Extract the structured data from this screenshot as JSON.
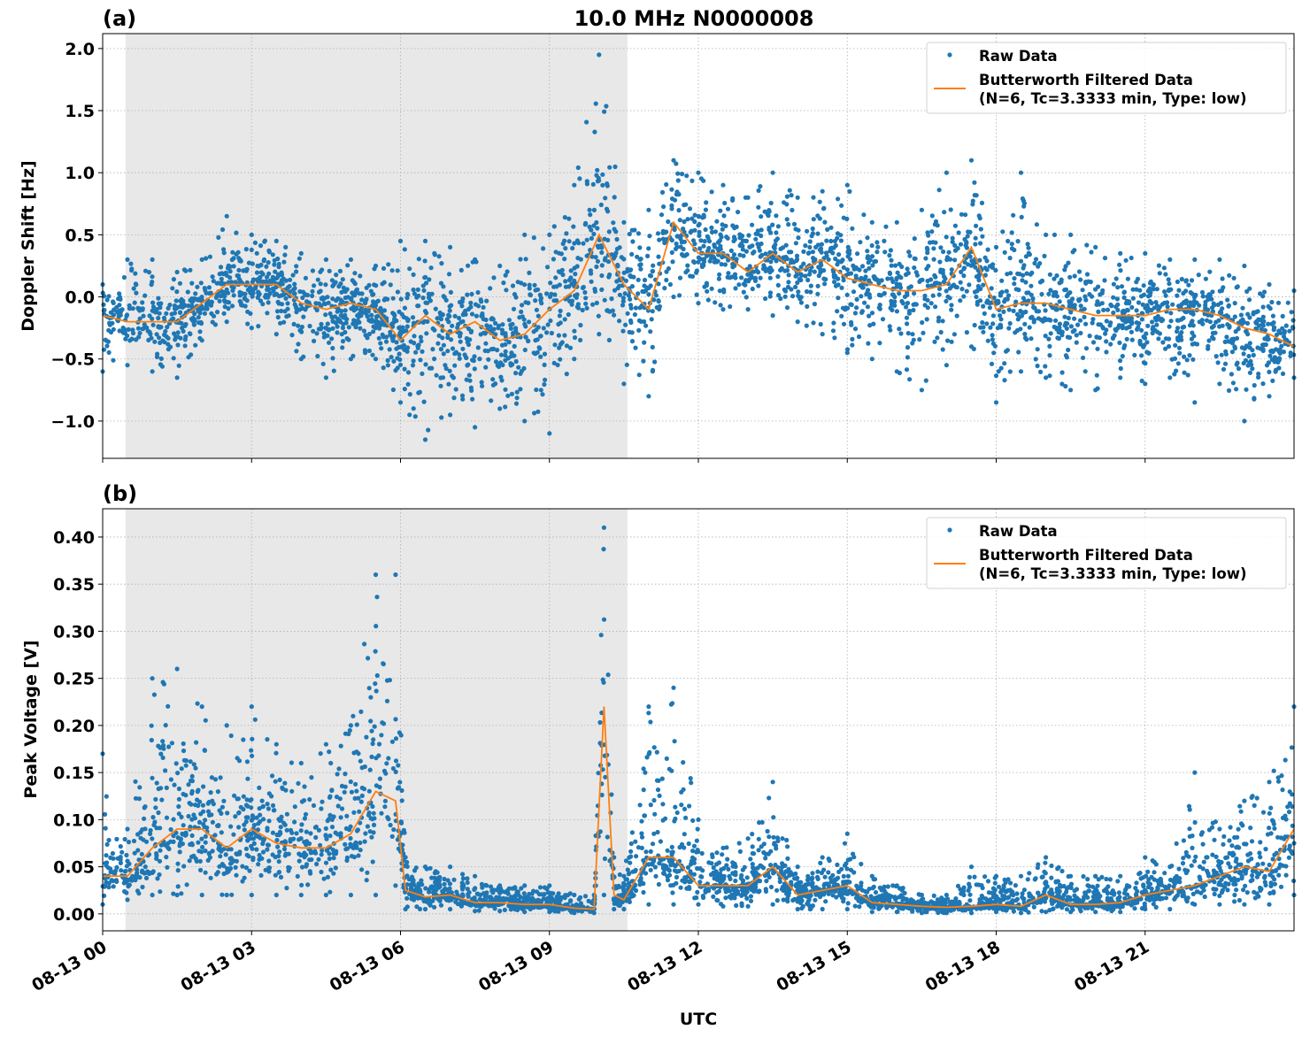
{
  "chart_data": [
    {
      "type": "scatter+line",
      "panel_label": "(a)",
      "title": "10.0 MHz N0000008",
      "xlabel": "",
      "ylabel": "Doppler Shift [Hz]",
      "ylim": [
        -1.3,
        2.12
      ],
      "yticks": [
        2.0,
        1.5,
        1.0,
        0.5,
        0.0,
        -0.5,
        -1.0
      ],
      "ytick_labels": [
        "2.0",
        "1.5",
        "1.0",
        "0.5",
        "0.0",
        "−0.5",
        "−1.0"
      ],
      "grid": true,
      "legend_position": "top-right",
      "legend": [
        "Raw Data",
        "Butterworth Filtered Data",
        "(N=6, Tc=3.3333 min, Type: low)"
      ],
      "shaded_interval_hours": [
        0.46,
        10.57
      ],
      "x_hours": [
        0,
        0.5,
        1,
        1.5,
        2,
        2.5,
        3,
        3.5,
        4,
        4.5,
        5,
        5.5,
        6,
        6.5,
        7,
        7.5,
        8,
        8.5,
        9,
        9.5,
        10,
        10.5,
        11,
        11.5,
        12,
        12.5,
        13,
        13.5,
        14,
        14.5,
        15,
        15.5,
        16,
        16.5,
        17,
        17.5,
        18,
        18.5,
        19,
        19.5,
        20,
        20.5,
        21,
        21.5,
        22,
        22.5,
        23,
        23.5,
        24
      ],
      "series": [
        {
          "name": "Butterworth Filtered Data",
          "kind": "line",
          "color": "#ff7f0e",
          "values": [
            -0.15,
            -0.2,
            -0.2,
            -0.2,
            -0.05,
            0.1,
            0.1,
            0.1,
            -0.05,
            -0.1,
            -0.05,
            -0.1,
            -0.35,
            -0.15,
            -0.3,
            -0.2,
            -0.35,
            -0.3,
            -0.1,
            0.05,
            0.5,
            0.1,
            -0.1,
            0.6,
            0.35,
            0.35,
            0.2,
            0.35,
            0.2,
            0.3,
            0.15,
            0.1,
            0.05,
            0.05,
            0.1,
            0.4,
            -0.1,
            -0.05,
            -0.05,
            -0.1,
            -0.15,
            -0.15,
            -0.15,
            -0.1,
            -0.1,
            -0.15,
            -0.25,
            -0.3,
            -0.4
          ]
        },
        {
          "name": "Raw Data",
          "kind": "scatter-envelope",
          "color": "#1f77b4",
          "high": [
            0.1,
            0.3,
            0.3,
            0.2,
            0.3,
            0.65,
            0.5,
            0.45,
            0.35,
            0.3,
            0.3,
            0.25,
            0.45,
            0.45,
            0.4,
            0.3,
            0.25,
            0.5,
            0.5,
            0.9,
            1.95,
            0.6,
            0.7,
            1.1,
            1.0,
            0.9,
            0.8,
            1.0,
            0.8,
            0.85,
            0.9,
            0.6,
            0.6,
            0.7,
            1.0,
            1.1,
            0.4,
            1.0,
            0.5,
            0.5,
            0.4,
            0.35,
            0.35,
            0.3,
            0.3,
            0.3,
            0.25,
            0.1,
            0.05
          ],
          "low": [
            -0.6,
            -0.55,
            -0.6,
            -0.65,
            -0.35,
            -0.2,
            -0.25,
            -0.3,
            -0.5,
            -0.65,
            -0.5,
            -0.5,
            -0.85,
            -1.15,
            -0.95,
            -1.05,
            -0.9,
            -1.0,
            -1.1,
            -0.5,
            -0.3,
            -0.7,
            -0.8,
            0.0,
            -0.05,
            -0.1,
            -0.1,
            -0.15,
            -0.2,
            -0.3,
            -0.45,
            -0.5,
            -0.6,
            -0.75,
            -0.55,
            -0.4,
            -0.85,
            -0.6,
            -0.65,
            -0.75,
            -0.75,
            -0.65,
            -0.7,
            -0.65,
            -0.85,
            -0.7,
            -1.0,
            -0.8,
            -0.65
          ]
        }
      ]
    },
    {
      "type": "scatter+line",
      "panel_label": "(b)",
      "xlabel": "UTC",
      "ylabel": "Peak Voltage [V]",
      "ylim": [
        -0.018,
        0.43
      ],
      "yticks": [
        0.4,
        0.35,
        0.3,
        0.25,
        0.2,
        0.15,
        0.1,
        0.05,
        0.0
      ],
      "ytick_labels": [
        "0.40",
        "0.35",
        "0.30",
        "0.25",
        "0.20",
        "0.15",
        "0.10",
        "0.05",
        "0.00"
      ],
      "xlim_hours": [
        0,
        24
      ],
      "xticks_hours": [
        0,
        3,
        6,
        9,
        12,
        15,
        18,
        21
      ],
      "xtick_labels": [
        "08-13 00",
        "08-13 03",
        "08-13 06",
        "08-13 09",
        "08-13 12",
        "08-13 15",
        "08-13 18",
        "08-13 21"
      ],
      "grid": true,
      "legend_position": "top-right",
      "legend": [
        "Raw Data",
        "Butterworth Filtered Data",
        "(N=6, Tc=3.3333 min, Type: low)"
      ],
      "shaded_interval_hours": [
        0.46,
        10.57
      ],
      "x_hours": [
        0,
        0.5,
        1,
        1.5,
        2,
        2.5,
        3,
        3.5,
        4,
        4.5,
        5,
        5.5,
        5.9,
        6.1,
        6.5,
        7,
        7.5,
        8,
        8.5,
        9,
        9.5,
        9.9,
        10.1,
        10.3,
        10.5,
        11,
        11.5,
        12,
        12.5,
        13,
        13.5,
        14,
        14.5,
        15,
        15.5,
        16,
        16.5,
        17,
        17.5,
        18,
        18.5,
        19,
        19.5,
        20,
        20.5,
        21,
        21.5,
        22,
        22.5,
        23,
        23.5,
        24
      ],
      "series": [
        {
          "name": "Butterworth Filtered Data",
          "kind": "line",
          "color": "#ff7f0e",
          "values": [
            0.04,
            0.04,
            0.07,
            0.09,
            0.09,
            0.07,
            0.09,
            0.075,
            0.07,
            0.07,
            0.085,
            0.13,
            0.12,
            0.025,
            0.018,
            0.02,
            0.012,
            0.012,
            0.01,
            0.01,
            0.006,
            0.005,
            0.22,
            0.02,
            0.015,
            0.06,
            0.06,
            0.03,
            0.03,
            0.03,
            0.05,
            0.02,
            0.025,
            0.03,
            0.012,
            0.01,
            0.008,
            0.007,
            0.008,
            0.01,
            0.008,
            0.02,
            0.01,
            0.01,
            0.012,
            0.02,
            0.025,
            0.03,
            0.04,
            0.05,
            0.045,
            0.09
          ]
        },
        {
          "name": "Raw Data",
          "kind": "scatter-envelope",
          "color": "#1f77b4",
          "high": [
            0.17,
            0.09,
            0.25,
            0.26,
            0.22,
            0.2,
            0.22,
            0.18,
            0.16,
            0.18,
            0.2,
            0.36,
            0.36,
            0.06,
            0.05,
            0.05,
            0.04,
            0.03,
            0.03,
            0.03,
            0.02,
            0.02,
            0.41,
            0.06,
            0.04,
            0.22,
            0.24,
            0.1,
            0.07,
            0.08,
            0.14,
            0.05,
            0.06,
            0.085,
            0.04,
            0.03,
            0.02,
            0.02,
            0.05,
            0.04,
            0.04,
            0.06,
            0.04,
            0.04,
            0.04,
            0.06,
            0.05,
            0.15,
            0.09,
            0.12,
            0.14,
            0.22
          ],
          "low": [
            0.01,
            0.015,
            0.02,
            0.02,
            0.02,
            0.02,
            0.02,
            0.02,
            0.02,
            0.02,
            0.02,
            0.02,
            0.03,
            0.005,
            0.005,
            0.005,
            0.003,
            0.003,
            0.002,
            0.002,
            0.001,
            0.001,
            0.02,
            0.005,
            0.005,
            0.01,
            0.01,
            0.01,
            0.008,
            0.008,
            0.01,
            0.005,
            0.005,
            0.005,
            0.002,
            0.002,
            0.001,
            0.001,
            0.001,
            0.002,
            0.001,
            0.002,
            0.002,
            0.002,
            0.002,
            0.005,
            0.005,
            0.01,
            0.01,
            0.01,
            0.01,
            0.02
          ]
        }
      ]
    }
  ]
}
